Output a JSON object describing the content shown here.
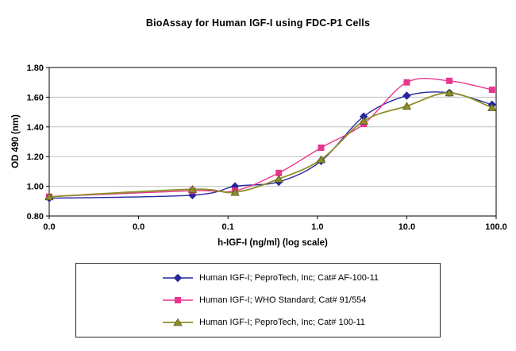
{
  "title": "BioAssay for Human IGF-I using FDC-P1 Cells",
  "chart_data": {
    "type": "line",
    "title": "BioAssay for Human IGF-I using FDC-P1 Cells",
    "xlabel": "h-IGF-I (ng/ml) (log scale)",
    "ylabel": "OD 490 (nm)",
    "x_scale": "log",
    "ylim": [
      0.8,
      1.8
    ],
    "y_tick_labels": [
      "0.80",
      "1.00",
      "1.20",
      "1.40",
      "1.60",
      "1.80"
    ],
    "y_tick_values": [
      0.8,
      1.0,
      1.2,
      1.4,
      1.6,
      1.8
    ],
    "x_tick_labels": [
      "0.0",
      "0.0",
      "0.1",
      "1.0",
      "10.0",
      "100.0"
    ],
    "x_tick_logs": [
      -3,
      -2,
      -1,
      0,
      1,
      2
    ],
    "grid": "horizontal",
    "legend_position": "bottom",
    "x": [
      0,
      0.04,
      0.12,
      0.37,
      1.1,
      3.3,
      10,
      30,
      90
    ],
    "series": [
      {
        "name": "Human IGF-I; PeproTech, Inc; Cat# AF-100-11",
        "color": "#26269e",
        "marker": "diamond",
        "values": [
          0.92,
          0.94,
          1.0,
          1.03,
          1.17,
          1.47,
          1.61,
          1.63,
          1.55
        ]
      },
      {
        "name": "Human IGF-I; WHO Standard; Cat# 91/554",
        "color": "#e8368d",
        "marker": "square",
        "values": [
          0.93,
          0.97,
          0.97,
          1.09,
          1.26,
          1.42,
          1.7,
          1.71,
          1.65
        ]
      },
      {
        "name": "Human IGF-I; PeproTech, Inc; Cat# 100-11",
        "color": "#8f8f2a",
        "marker": "triangle",
        "values": [
          0.93,
          0.98,
          0.96,
          1.05,
          1.18,
          1.44,
          1.54,
          1.63,
          1.53
        ]
      }
    ]
  }
}
